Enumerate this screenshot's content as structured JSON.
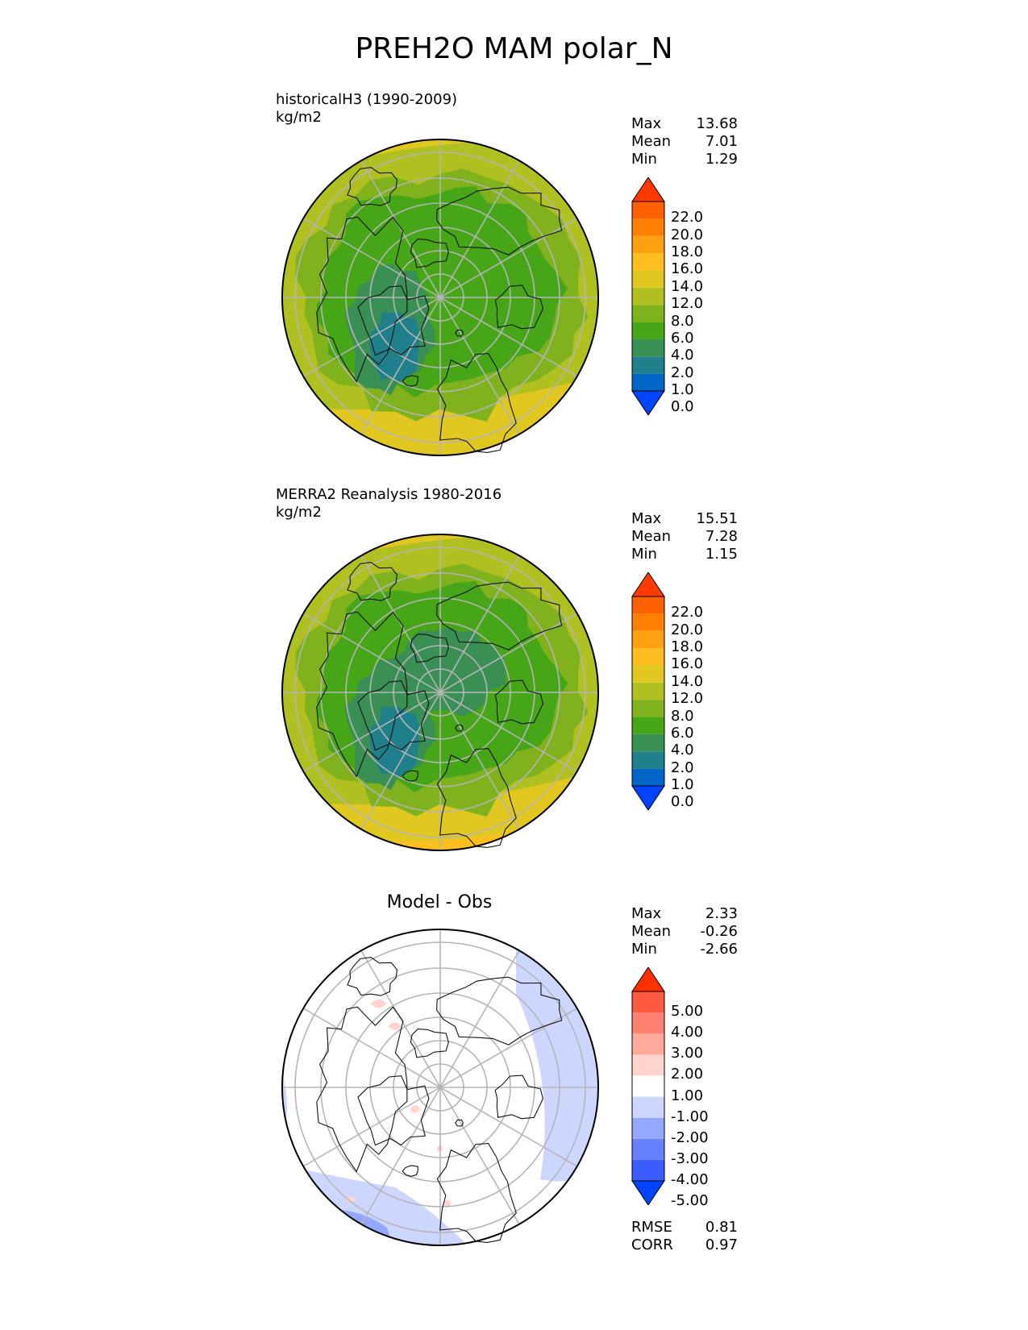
{
  "title": "PREH2O MAM polar_N",
  "colors": {
    "field": [
      "#0044ff",
      "#0066c8",
      "#1f7f8a",
      "#3a8f55",
      "#47a518",
      "#7fb21c",
      "#b0c020",
      "#e0c820",
      "#ffbe20",
      "#ffa010",
      "#ff8000",
      "#ff6000",
      "#ff3a00"
    ],
    "diff": [
      "#0044ff",
      "#3a5cff",
      "#6680ff",
      "#94a8ff",
      "#cdd6ff",
      "#ffffff",
      "#ffd4cf",
      "#ffaa9a",
      "#ff8070",
      "#ff5a40",
      "#ff3000"
    ]
  },
  "panels": [
    {
      "id": "model",
      "subtitle_line1": "historicalH3 (1990-2009)",
      "subtitle_line2": "kg/m2",
      "stats": [
        {
          "label": "Max",
          "value": "13.68"
        },
        {
          "label": "Mean",
          "value": "7.01"
        },
        {
          "label": "Min",
          "value": "1.29"
        }
      ],
      "colorbar_ticks": [
        "22.0",
        "20.0",
        "18.0",
        "16.0",
        "14.0",
        "12.0",
        "8.0",
        "6.0",
        "4.0",
        "2.0",
        "1.0",
        "0.0"
      ]
    },
    {
      "id": "obs",
      "subtitle_line1": "MERRA2 Reanalysis 1980-2016",
      "subtitle_line2": "kg/m2",
      "stats": [
        {
          "label": "Max",
          "value": "15.51"
        },
        {
          "label": "Mean",
          "value": "7.28"
        },
        {
          "label": "Min",
          "value": "1.15"
        }
      ],
      "colorbar_ticks": [
        "22.0",
        "20.0",
        "18.0",
        "16.0",
        "14.0",
        "12.0",
        "8.0",
        "6.0",
        "4.0",
        "2.0",
        "1.0",
        "0.0"
      ]
    },
    {
      "id": "diff",
      "title": "Model - Obs",
      "stats": [
        {
          "label": "Max",
          "value": "2.33"
        },
        {
          "label": "Mean",
          "value": "-0.26"
        },
        {
          "label": "Min",
          "value": "-2.66"
        }
      ],
      "colorbar_ticks": [
        "5.00",
        "4.00",
        "3.00",
        "2.00",
        "1.00",
        "-1.00",
        "-2.00",
        "-3.00",
        "-4.00",
        "-5.00"
      ],
      "extra_stats": [
        {
          "label": "RMSE",
          "value": "0.81"
        },
        {
          "label": "CORR",
          "value": "0.97"
        }
      ]
    }
  ],
  "chart_data": [
    {
      "type": "heatmap",
      "title": "historicalH3 (1990-2009)",
      "units": "kg/m2",
      "projection": "north polar stereographic",
      "summary": {
        "max": 13.68,
        "mean": 7.01,
        "min": 1.29
      },
      "color_levels": [
        0.0,
        1.0,
        2.0,
        4.0,
        6.0,
        8.0,
        12.0,
        14.0,
        16.0,
        18.0,
        20.0,
        22.0
      ],
      "extend": "both"
    },
    {
      "type": "heatmap",
      "title": "MERRA2 Reanalysis 1980-2016",
      "units": "kg/m2",
      "projection": "north polar stereographic",
      "summary": {
        "max": 15.51,
        "mean": 7.28,
        "min": 1.15
      },
      "color_levels": [
        0.0,
        1.0,
        2.0,
        4.0,
        6.0,
        8.0,
        12.0,
        14.0,
        16.0,
        18.0,
        20.0,
        22.0
      ],
      "extend": "both"
    },
    {
      "type": "heatmap",
      "title": "Model - Obs",
      "projection": "north polar stereographic",
      "summary": {
        "max": 2.33,
        "mean": -0.26,
        "min": -2.66,
        "rmse": 0.81,
        "corr": 0.97
      },
      "color_levels": [
        -5.0,
        -4.0,
        -3.0,
        -2.0,
        -1.0,
        1.0,
        2.0,
        3.0,
        4.0,
        5.0
      ],
      "extend": "both"
    }
  ]
}
